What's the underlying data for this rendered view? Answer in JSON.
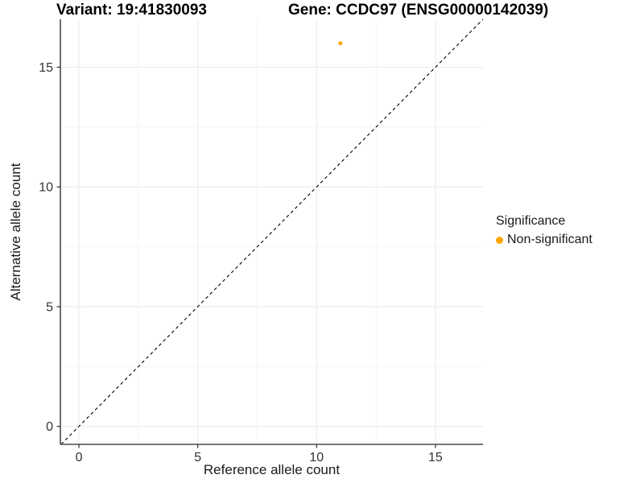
{
  "chart_data": {
    "type": "scatter",
    "title_left": "Variant: 19:41830093",
    "title_right": "Gene: CCDC97 (ENSG00000142039)",
    "xlabel": "Reference allele count",
    "ylabel": "Alternative allele count",
    "xlim": [
      -0.78,
      17.0
    ],
    "ylim": [
      -0.75,
      17.0
    ],
    "x_ticks": [
      0,
      5,
      10,
      15
    ],
    "y_ticks": [
      0,
      5,
      10,
      15
    ],
    "x_minor_ticks": [
      2.5,
      7.5,
      12.5
    ],
    "y_minor_ticks": [
      2.5,
      7.5,
      12.5
    ],
    "grid": true,
    "points": [
      {
        "x": 11,
        "y": 16,
        "series": "Non-significant"
      }
    ],
    "reference_line": {
      "kind": "identity y=x",
      "style": "dashed",
      "color": "#000000"
    },
    "legend": {
      "title": "Significance",
      "position": "right",
      "entries": [
        {
          "label": "Non-significant",
          "color": "#FFA500"
        }
      ]
    },
    "colors": {
      "point_default": "#FFA500",
      "axis_line": "#4a4a4a",
      "tick_mark": "#333333",
      "tick_text": "#333333",
      "grid_major": "#ebebeb",
      "grid_minor": "#f4f4f4",
      "background": "#ffffff"
    }
  }
}
